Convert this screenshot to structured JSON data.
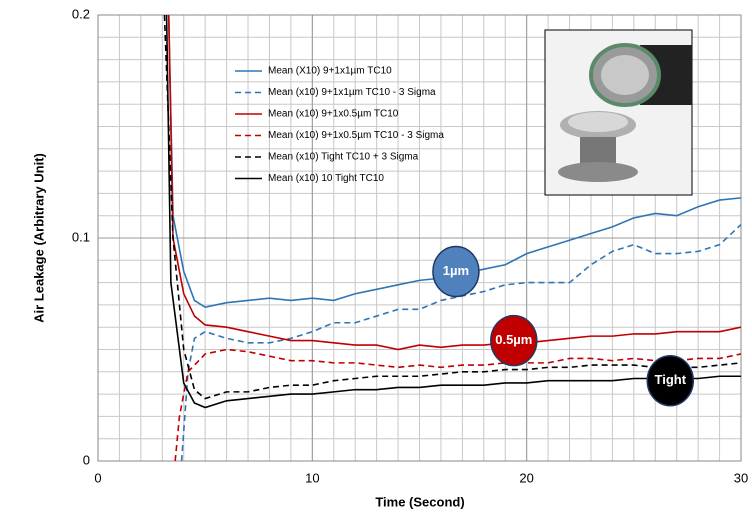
{
  "chart_data": {
    "type": "line",
    "xlabel": "Time (Second)",
    "ylabel": "Air Leakage (Arbitrary Unit)",
    "xlim": [
      0,
      30
    ],
    "xticks": [
      0,
      10,
      20,
      30
    ],
    "ylim": [
      0,
      0.2
    ],
    "yticks": [
      0,
      0.1,
      0.2
    ],
    "grid": true,
    "minor_grid": {
      "x": 1,
      "y": 0.01
    },
    "legend": "top-center",
    "series": [
      {
        "name": "Mean (X10) 9+1x1µm TC10",
        "color": "#2e75b6",
        "dash": false,
        "x": [
          3.3,
          3.5,
          4,
          4.5,
          5,
          6,
          7,
          8,
          9,
          10,
          11,
          12,
          13,
          14,
          15,
          16,
          17,
          18,
          19,
          20,
          21,
          22,
          23,
          24,
          25,
          26,
          27,
          28,
          29,
          30
        ],
        "values": [
          0.2,
          0.11,
          0.085,
          0.072,
          0.069,
          0.071,
          0.072,
          0.073,
          0.072,
          0.073,
          0.072,
          0.075,
          0.077,
          0.079,
          0.081,
          0.082,
          0.084,
          0.086,
          0.088,
          0.093,
          0.096,
          0.099,
          0.102,
          0.105,
          0.109,
          0.111,
          0.11,
          0.114,
          0.117,
          0.118
        ]
      },
      {
        "name": "Mean (x10) 9+1x1µm TC10 - 3 Sigma",
        "color": "#2e75b6",
        "dash": true,
        "x": [
          3.9,
          4.2,
          4.5,
          5,
          6,
          7,
          8,
          9,
          10,
          11,
          12,
          13,
          14,
          15,
          16,
          17,
          18,
          19,
          20,
          21,
          22,
          23,
          24,
          25,
          26,
          27,
          28,
          29,
          30
        ],
        "values": [
          0,
          0.04,
          0.055,
          0.058,
          0.055,
          0.053,
          0.053,
          0.055,
          0.058,
          0.062,
          0.062,
          0.065,
          0.068,
          0.068,
          0.072,
          0.074,
          0.076,
          0.079,
          0.08,
          0.08,
          0.08,
          0.088,
          0.094,
          0.097,
          0.093,
          0.093,
          0.094,
          0.097,
          0.106
        ]
      },
      {
        "name": "Mean (x10) 9+1x0.5µm TC10",
        "color": "#c00000",
        "dash": false,
        "x": [
          3.3,
          3.5,
          4,
          4.5,
          5,
          6,
          7,
          8,
          9,
          10,
          11,
          12,
          13,
          14,
          15,
          16,
          17,
          18,
          19,
          20,
          21,
          22,
          23,
          24,
          25,
          26,
          27,
          28,
          29,
          30
        ],
        "values": [
          0.2,
          0.1,
          0.075,
          0.065,
          0.061,
          0.06,
          0.058,
          0.056,
          0.054,
          0.054,
          0.053,
          0.052,
          0.052,
          0.05,
          0.052,
          0.051,
          0.052,
          0.052,
          0.053,
          0.053,
          0.054,
          0.055,
          0.056,
          0.056,
          0.057,
          0.057,
          0.058,
          0.058,
          0.058,
          0.06
        ]
      },
      {
        "name": "Mean (x10) 9+1x0.5µm TC10 - 3 Sigma",
        "color": "#c00000",
        "dash": true,
        "x": [
          3.6,
          3.8,
          4.2,
          5,
          6,
          7,
          8,
          9,
          10,
          11,
          12,
          13,
          14,
          15,
          16,
          17,
          18,
          19,
          20,
          21,
          22,
          23,
          24,
          25,
          26,
          27,
          28,
          29,
          30
        ],
        "values": [
          0,
          0.02,
          0.04,
          0.048,
          0.05,
          0.049,
          0.047,
          0.045,
          0.045,
          0.044,
          0.044,
          0.043,
          0.042,
          0.043,
          0.042,
          0.043,
          0.043,
          0.044,
          0.044,
          0.044,
          0.046,
          0.046,
          0.045,
          0.046,
          0.045,
          0.045,
          0.046,
          0.046,
          0.048
        ]
      },
      {
        "name": "Mean (x10) Tight TC10 + 3 Sigma",
        "color": "#000000",
        "dash": true,
        "x": [
          3.1,
          3.5,
          4,
          4.5,
          5,
          6,
          7,
          8,
          9,
          10,
          11,
          12,
          13,
          14,
          15,
          16,
          17,
          18,
          19,
          20,
          21,
          22,
          23,
          24,
          25,
          26,
          27,
          28,
          29,
          30
        ],
        "values": [
          0.2,
          0.1,
          0.05,
          0.032,
          0.028,
          0.031,
          0.031,
          0.033,
          0.034,
          0.034,
          0.036,
          0.037,
          0.038,
          0.038,
          0.038,
          0.039,
          0.04,
          0.04,
          0.041,
          0.041,
          0.042,
          0.042,
          0.043,
          0.043,
          0.043,
          0.042,
          0.042,
          0.042,
          0.043,
          0.044
        ]
      },
      {
        "name": "Mean (x10) 10 Tight TC10",
        "color": "#000000",
        "dash": false,
        "x": [
          3.2,
          3.4,
          4,
          4.5,
          5,
          6,
          7,
          8,
          9,
          10,
          11,
          12,
          13,
          14,
          15,
          16,
          17,
          18,
          19,
          20,
          21,
          22,
          23,
          24,
          25,
          26,
          27,
          28,
          29,
          30
        ],
        "values": [
          0.2,
          0.08,
          0.035,
          0.026,
          0.024,
          0.027,
          0.028,
          0.029,
          0.03,
          0.03,
          0.031,
          0.032,
          0.032,
          0.033,
          0.033,
          0.034,
          0.034,
          0.034,
          0.035,
          0.035,
          0.036,
          0.036,
          0.036,
          0.036,
          0.037,
          0.037,
          0.037,
          0.037,
          0.038,
          0.038
        ]
      }
    ],
    "annotations": [
      {
        "text": "1µm",
        "x": 16.7,
        "y": 0.085,
        "color": "#4f81bd"
      },
      {
        "text": "0.5µm",
        "x": 19.4,
        "y": 0.054,
        "color": "#c00000"
      },
      {
        "text": "Tight",
        "x": 26.7,
        "y": 0.036,
        "color": "#000000"
      }
    ]
  }
}
